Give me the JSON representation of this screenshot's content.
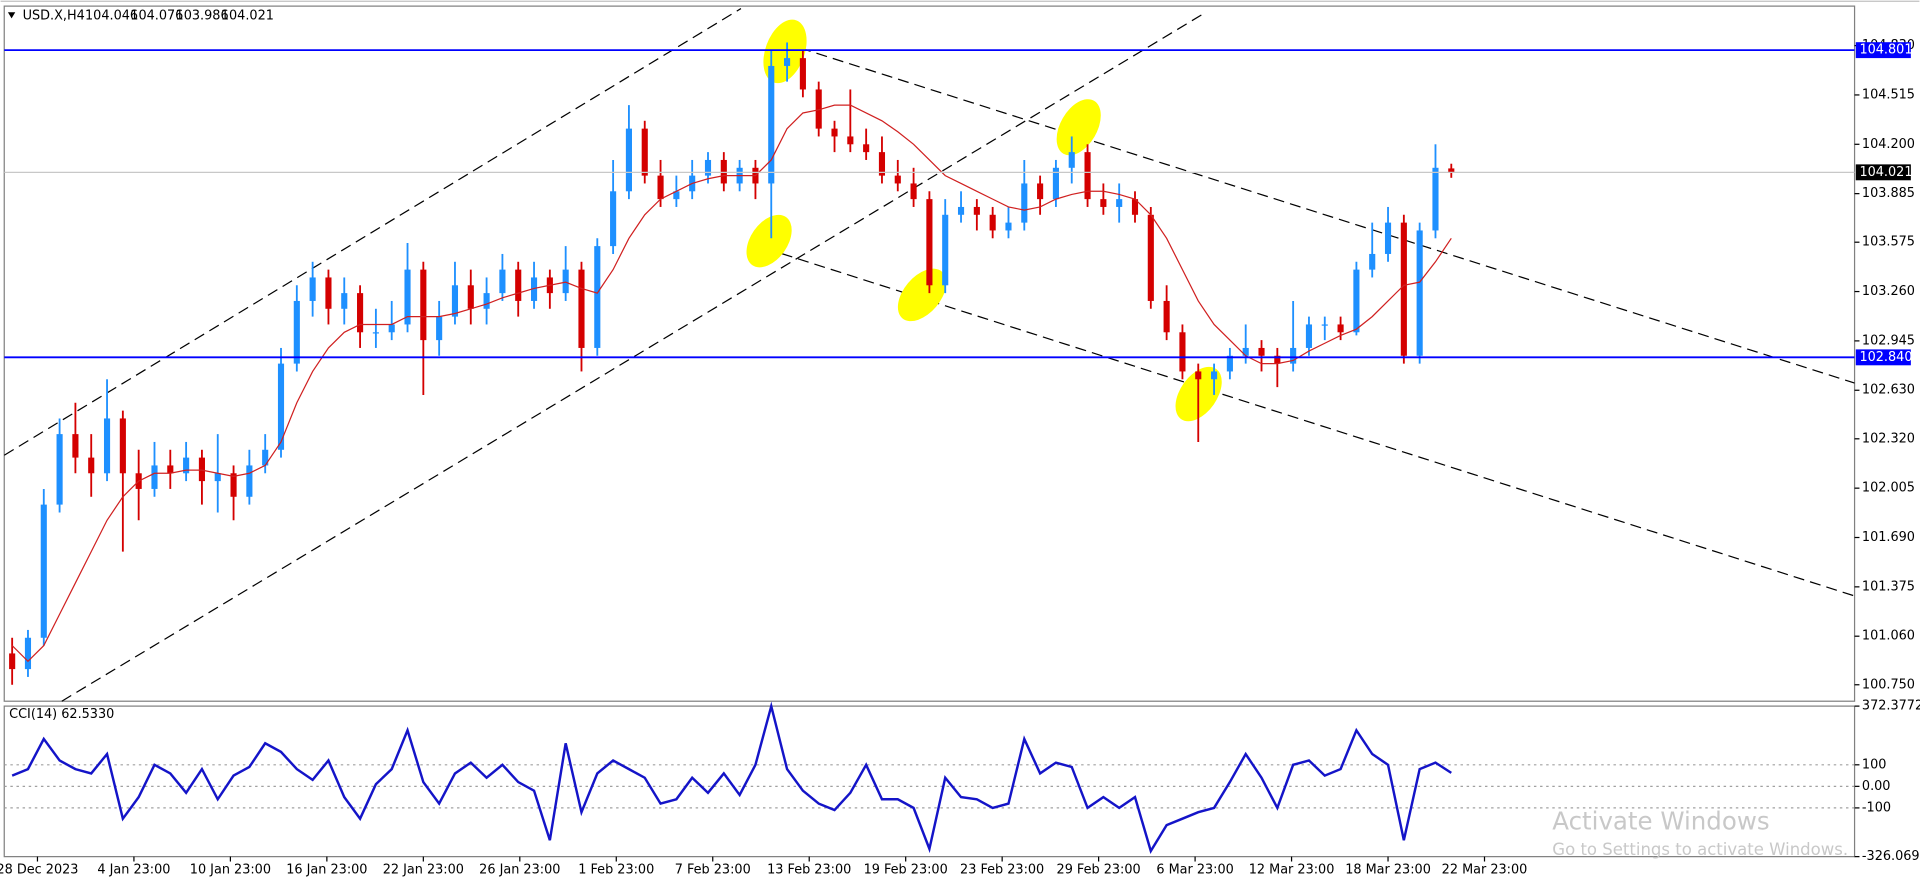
{
  "chart_data": [
    {
      "type": "candlestick",
      "title": "USD.X,H4",
      "up_color": "#1e90ff",
      "down_color": "#d40000",
      "xlim": [
        0,
        117
      ],
      "xticks": [
        {
          "value": 2.1,
          "label": "28 Dec 2023"
        },
        {
          "value": 8.2,
          "label": "4 Jan 23:00"
        },
        {
          "value": 14.3,
          "label": "10 Jan 23:00"
        },
        {
          "value": 20.4,
          "label": "16 Jan 23:00"
        },
        {
          "value": 26.5,
          "label": "22 Jan 23:00"
        },
        {
          "value": 32.6,
          "label": "26 Jan 23:00"
        },
        {
          "value": 38.7,
          "label": "1 Feb 23:00"
        },
        {
          "value": 44.8,
          "label": "7 Feb 23:00"
        },
        {
          "value": 50.9,
          "label": "13 Feb 23:00"
        },
        {
          "value": 57,
          "label": "19 Feb 23:00"
        },
        {
          "value": 63.1,
          "label": "23 Feb 23:00"
        },
        {
          "value": 69.2,
          "label": "29 Feb 23:00"
        },
        {
          "value": 75.3,
          "label": "6 Mar 23:00"
        },
        {
          "value": 81.4,
          "label": "12 Mar 23:00"
        },
        {
          "value": 87.5,
          "label": "18 Mar 23:00"
        },
        {
          "value": 93.6,
          "label": "22 Mar 23:00"
        }
      ],
      "ylim": [
        100.645,
        105.082
      ],
      "yticks": [
        {
          "value": 104.83,
          "label": "104.830"
        },
        104.515,
        {
          "value": 104.2,
          "label": "104.200"
        },
        103.885,
        103.575,
        {
          "value": 103.26,
          "label": "103.260"
        },
        102.945,
        {
          "value": 102.63,
          "label": "102.630"
        },
        {
          "value": 102.32,
          "label": "102.320"
        },
        102.005,
        {
          "value": 101.69,
          "label": "101.690"
        },
        101.375,
        {
          "value": 101.06,
          "label": "101.060"
        },
        {
          "value": 100.75,
          "label": "100.750"
        }
      ],
      "grid": false,
      "levels": [
        {
          "value": 104.801,
          "color": "#0000ff",
          "box": "#0000ff"
        },
        {
          "value": 102.84,
          "label": "102.840",
          "color": "#0000ff",
          "box": "#0000ff"
        },
        {
          "value": 104.021,
          "color": "#c8c8c8",
          "box": "#000000"
        }
      ],
      "ohlc": [
        [
          100.95,
          101.05,
          100.75,
          100.85
        ],
        [
          100.85,
          101.1,
          100.8,
          101.05
        ],
        [
          101.05,
          102.0,
          101.0,
          101.9
        ],
        [
          101.9,
          102.45,
          101.85,
          102.35
        ],
        [
          102.35,
          102.55,
          102.1,
          102.2
        ],
        [
          102.2,
          102.35,
          101.95,
          102.1
        ],
        [
          102.1,
          102.7,
          102.05,
          102.45
        ],
        [
          102.45,
          102.5,
          101.6,
          102.1
        ],
        [
          102.1,
          102.25,
          101.8,
          102.0
        ],
        [
          102.0,
          102.3,
          101.95,
          102.15
        ],
        [
          102.15,
          102.25,
          102.0,
          102.1
        ],
        [
          102.1,
          102.3,
          102.05,
          102.2
        ],
        [
          102.2,
          102.25,
          101.9,
          102.05
        ],
        [
          102.05,
          102.35,
          101.85,
          102.1
        ],
        [
          102.1,
          102.15,
          101.8,
          101.95
        ],
        [
          101.95,
          102.25,
          101.9,
          102.15
        ],
        [
          102.15,
          102.35,
          102.1,
          102.25
        ],
        [
          102.25,
          102.9,
          102.2,
          102.8
        ],
        [
          102.8,
          103.3,
          102.75,
          103.2
        ],
        [
          103.2,
          103.45,
          103.1,
          103.35
        ],
        [
          103.35,
          103.4,
          103.05,
          103.15
        ],
        [
          103.15,
          103.35,
          103.05,
          103.25
        ],
        [
          103.25,
          103.3,
          102.9,
          103.0
        ],
        [
          103.0,
          103.15,
          102.9,
          103.0
        ],
        [
          103.0,
          103.2,
          102.95,
          103.05
        ],
        [
          103.05,
          103.57,
          103.0,
          103.4
        ],
        [
          103.4,
          103.45,
          102.6,
          102.95
        ],
        [
          102.95,
          103.2,
          102.85,
          103.1
        ],
        [
          103.1,
          103.45,
          103.05,
          103.3
        ],
        [
          103.3,
          103.4,
          103.05,
          103.15
        ],
        [
          103.15,
          103.35,
          103.05,
          103.25
        ],
        [
          103.25,
          103.5,
          103.2,
          103.4
        ],
        [
          103.4,
          103.45,
          103.1,
          103.2
        ],
        [
          103.2,
          103.45,
          103.15,
          103.35
        ],
        [
          103.35,
          103.4,
          103.15,
          103.25
        ],
        [
          103.25,
          103.55,
          103.2,
          103.4
        ],
        [
          103.4,
          103.45,
          102.75,
          102.9
        ],
        [
          102.9,
          103.6,
          102.85,
          103.55
        ],
        [
          103.55,
          104.1,
          103.5,
          103.9
        ],
        [
          103.9,
          104.45,
          103.85,
          104.3
        ],
        [
          104.3,
          104.35,
          103.95,
          104.0
        ],
        [
          104.0,
          104.1,
          103.8,
          103.85
        ],
        [
          103.85,
          104.0,
          103.8,
          103.9
        ],
        [
          103.9,
          104.1,
          103.85,
          104.0
        ],
        [
          104.0,
          104.15,
          103.95,
          104.1
        ],
        [
          104.1,
          104.15,
          103.9,
          103.95
        ],
        [
          103.95,
          104.1,
          103.9,
          104.05
        ],
        [
          104.05,
          104.1,
          103.85,
          103.95
        ],
        [
          103.95,
          104.8,
          103.6,
          104.7
        ],
        [
          104.7,
          104.85,
          104.6,
          104.75
        ],
        [
          104.75,
          104.8,
          104.5,
          104.55
        ],
        [
          104.55,
          104.6,
          104.25,
          104.3
        ],
        [
          104.3,
          104.35,
          104.15,
          104.25
        ],
        [
          104.25,
          104.55,
          104.15,
          104.2
        ],
        [
          104.2,
          104.3,
          104.1,
          104.15
        ],
        [
          104.15,
          104.25,
          103.95,
          104.0
        ],
        [
          104.0,
          104.1,
          103.9,
          103.95
        ],
        [
          103.95,
          104.05,
          103.8,
          103.85
        ],
        [
          103.85,
          103.9,
          103.25,
          103.3
        ],
        [
          103.3,
          103.85,
          103.25,
          103.75
        ],
        [
          103.75,
          103.9,
          103.7,
          103.8
        ],
        [
          103.8,
          103.85,
          103.65,
          103.75
        ],
        [
          103.75,
          103.8,
          103.6,
          103.65
        ],
        [
          103.65,
          103.8,
          103.6,
          103.7
        ],
        [
          103.7,
          104.1,
          103.65,
          103.95
        ],
        [
          103.95,
          104.0,
          103.75,
          103.85
        ],
        [
          103.85,
          104.1,
          103.8,
          104.05
        ],
        [
          104.05,
          104.25,
          103.95,
          104.15
        ],
        [
          104.15,
          104.2,
          103.8,
          103.85
        ],
        [
          103.85,
          103.95,
          103.75,
          103.8
        ],
        [
          103.8,
          103.95,
          103.7,
          103.85
        ],
        [
          103.85,
          103.9,
          103.7,
          103.75
        ],
        [
          103.75,
          103.8,
          103.15,
          103.2
        ],
        [
          103.2,
          103.3,
          102.95,
          103.0
        ],
        [
          103.0,
          103.05,
          102.7,
          102.75
        ],
        [
          102.75,
          102.8,
          102.3,
          102.7
        ],
        [
          102.7,
          102.8,
          102.6,
          102.75
        ],
        [
          102.75,
          102.9,
          102.7,
          102.85
        ],
        [
          102.85,
          103.05,
          102.8,
          102.9
        ],
        [
          102.9,
          102.95,
          102.75,
          102.85
        ],
        [
          102.85,
          102.9,
          102.65,
          102.8
        ],
        [
          102.8,
          103.2,
          102.75,
          102.9
        ],
        [
          102.9,
          103.1,
          102.85,
          103.05
        ],
        [
          103.05,
          103.1,
          102.95,
          103.05
        ],
        [
          103.05,
          103.1,
          102.95,
          103.0
        ],
        [
          103.0,
          103.45,
          102.98,
          103.4
        ],
        [
          103.4,
          103.7,
          103.35,
          103.5
        ],
        [
          103.5,
          103.8,
          103.45,
          103.7
        ],
        [
          103.7,
          103.75,
          102.8,
          102.85
        ],
        [
          102.85,
          103.7,
          102.8,
          103.65
        ],
        [
          103.65,
          104.2,
          103.6,
          104.05
        ],
        [
          104.046,
          104.076,
          103.986,
          104.021
        ]
      ],
      "series": [
        {
          "color": "#d02020",
          "values": [
            101.0,
            100.9,
            101.0,
            101.2,
            101.4,
            101.6,
            101.8,
            101.95,
            102.05,
            102.1,
            102.1,
            102.12,
            102.12,
            102.1,
            102.08,
            102.1,
            102.15,
            102.3,
            102.55,
            102.75,
            102.9,
            103.0,
            103.05,
            103.05,
            103.05,
            103.1,
            103.1,
            103.1,
            103.12,
            103.15,
            103.18,
            103.22,
            103.25,
            103.28,
            103.3,
            103.32,
            103.28,
            103.25,
            103.4,
            103.6,
            103.75,
            103.85,
            103.9,
            103.95,
            103.98,
            104.0,
            104.0,
            104.0,
            104.1,
            104.3,
            104.4,
            104.42,
            104.45,
            104.45,
            104.4,
            104.35,
            104.28,
            104.2,
            104.1,
            104.0,
            103.95,
            103.9,
            103.85,
            103.8,
            103.78,
            103.8,
            103.85,
            103.88,
            103.9,
            103.9,
            103.88,
            103.85,
            103.75,
            103.6,
            103.4,
            103.2,
            103.05,
            102.95,
            102.85,
            102.8,
            102.8,
            102.82,
            102.88,
            102.93,
            102.98,
            103.02,
            103.1,
            103.2,
            103.3,
            103.32,
            103.45,
            103.6
          ]
        }
      ]
    },
    {
      "type": "line",
      "title": "CCI(14) 62.5330",
      "xlim": [
        0,
        117
      ],
      "ylim": [
        -326.0692,
        372.3772
      ],
      "yticks": [
        372.3772,
        100,
        {
          "value": 0,
          "label": "0.00"
        },
        -100,
        -326.0692
      ],
      "grid": true,
      "series": [
        {
          "color": "#1414c8",
          "values": [
            50,
            80,
            220,
            120,
            80,
            60,
            150,
            -150,
            -50,
            100,
            60,
            -30,
            80,
            -60,
            50,
            90,
            200,
            160,
            80,
            30,
            120,
            -50,
            -150,
            10,
            80,
            260,
            20,
            -80,
            60,
            110,
            40,
            100,
            20,
            -20,
            -250,
            200,
            -120,
            60,
            120,
            80,
            40,
            -80,
            -60,
            40,
            -30,
            60,
            -40,
            100,
            372,
            80,
            -20,
            -80,
            -110,
            -30,
            100,
            -60,
            -60,
            -100,
            -290,
            40,
            -50,
            -60,
            -100,
            -80,
            220,
            60,
            110,
            90,
            -100,
            -50,
            -100,
            -50,
            -300,
            -180,
            -150,
            -120,
            -100,
            20,
            150,
            40,
            -100,
            100,
            120,
            50,
            80,
            260,
            150,
            100,
            -250,
            80,
            110,
            62.533
          ]
        }
      ]
    }
  ],
  "watermark": {
    "title": "Activate Windows",
    "subtitle": "Go to Settings to activate Windows."
  }
}
